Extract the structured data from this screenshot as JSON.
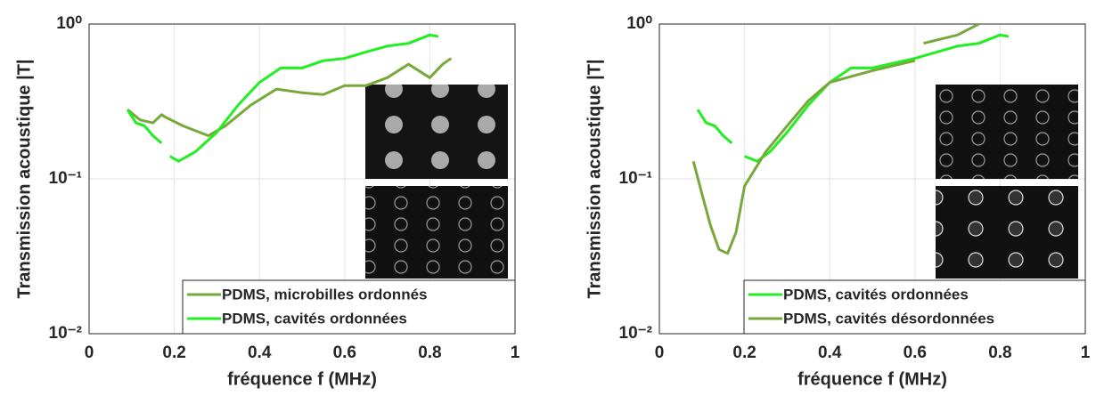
{
  "chart_data": [
    {
      "type": "line",
      "ylabel": "Transmission acoustique |T|",
      "xlabel": "fréquence f (MHz)",
      "xlim": [
        0,
        1
      ],
      "xticks": [
        0,
        0.2,
        0.4,
        0.6,
        0.8,
        1
      ],
      "ylim": [
        0.01,
        1
      ],
      "log_y": true,
      "yticks": [
        {
          "value": 0.01,
          "label": "10⁻²"
        },
        {
          "value": 0.1,
          "label": "10⁻¹"
        },
        {
          "value": 1,
          "label": "10⁰"
        }
      ],
      "grid": true,
      "legend": "lower right",
      "series": [
        {
          "name": "PDMS, microbilles ordonnés",
          "color": "#77a83a",
          "x": [
            0.09,
            0.12,
            0.15,
            0.17,
            0.18,
            0.22,
            0.28,
            0.32,
            0.38,
            0.44,
            0.5,
            0.55,
            0.6,
            0.65,
            0.7,
            0.75,
            0.8,
            0.83,
            0.85
          ],
          "values": [
            0.28,
            0.24,
            0.23,
            0.26,
            0.25,
            0.22,
            0.19,
            0.22,
            0.3,
            0.38,
            0.36,
            0.35,
            0.4,
            0.4,
            0.45,
            0.55,
            0.45,
            0.55,
            0.6
          ]
        },
        {
          "name": "PDMS, cavités ordonnées",
          "color": "#22ee22",
          "x": [
            0.09,
            0.11,
            0.13,
            0.15,
            0.17,
            0.18,
            0.19,
            0.21,
            0.25,
            0.3,
            0.35,
            0.4,
            0.45,
            0.5,
            0.55,
            0.6,
            0.65,
            0.7,
            0.75,
            0.8,
            0.82
          ],
          "values": [
            0.28,
            0.23,
            0.22,
            0.19,
            0.17,
            null,
            0.14,
            0.13,
            0.15,
            0.2,
            0.3,
            0.42,
            0.52,
            0.52,
            0.58,
            0.6,
            0.66,
            0.72,
            0.75,
            0.85,
            0.83
          ]
        }
      ]
    },
    {
      "type": "line",
      "ylabel": "Transmission acoustique |T|",
      "xlabel": "fréquence f (MHz)",
      "xlim": [
        0,
        1
      ],
      "xticks": [
        0,
        0.2,
        0.4,
        0.6,
        0.8,
        1
      ],
      "ylim": [
        0.01,
        1
      ],
      "log_y": true,
      "yticks": [
        {
          "value": 0.01,
          "label": "10⁻²"
        },
        {
          "value": 0.1,
          "label": "10⁻¹"
        },
        {
          "value": 1,
          "label": "10⁰"
        }
      ],
      "grid": true,
      "legend": "lower right",
      "series": [
        {
          "name": "PDMS, cavités ordonnées",
          "color": "#22ee22",
          "x": [
            0.09,
            0.11,
            0.13,
            0.15,
            0.17,
            0.18,
            0.2,
            0.23,
            0.26,
            0.3,
            0.35,
            0.4,
            0.45,
            0.5,
            0.6,
            0.7,
            0.75,
            0.8,
            0.82
          ],
          "values": [
            0.28,
            0.23,
            0.22,
            0.19,
            0.17,
            null,
            0.14,
            0.13,
            0.15,
            0.2,
            0.3,
            0.42,
            0.52,
            0.52,
            0.6,
            0.72,
            0.75,
            0.85,
            0.83
          ]
        },
        {
          "name": "PDMS, cavités désordonnées",
          "color": "#77a83a",
          "x": [
            0.08,
            0.1,
            0.12,
            0.14,
            0.16,
            0.18,
            0.2,
            0.25,
            0.3,
            0.35,
            0.4,
            0.5,
            0.6,
            0.61,
            0.62,
            0.7,
            0.75
          ],
          "values": [
            0.13,
            0.08,
            0.05,
            0.035,
            0.033,
            0.045,
            0.09,
            0.15,
            0.22,
            0.32,
            0.42,
            0.5,
            0.58,
            null,
            0.75,
            0.85,
            1.0
          ]
        }
      ]
    }
  ]
}
